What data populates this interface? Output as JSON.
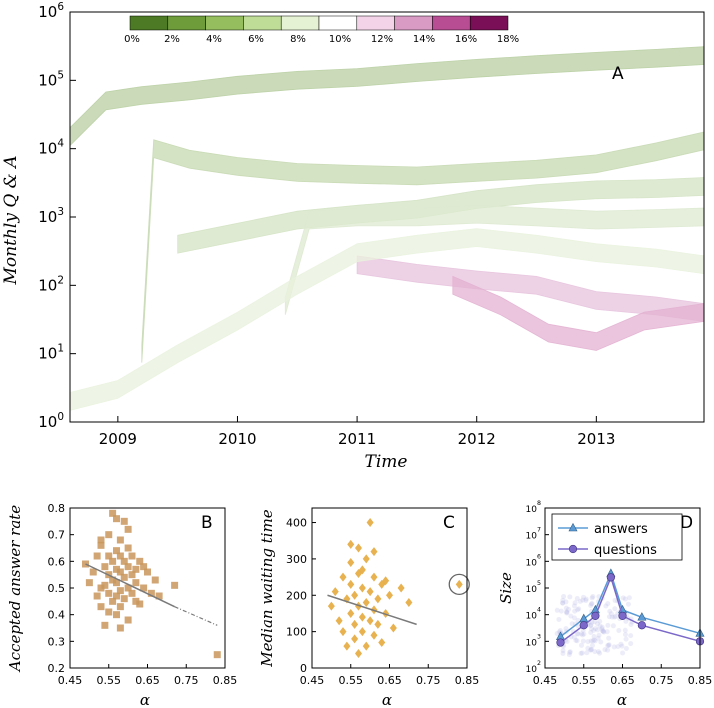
{
  "colorbar": {
    "labels": [
      "0%",
      "2%",
      "4%",
      "6%",
      "8%",
      "10%",
      "12%",
      "14%",
      "16%",
      "18%"
    ],
    "colors": [
      "#4d7a24",
      "#6e9c3a",
      "#95bf5f",
      "#c0dd98",
      "#e5f2d3",
      "#ffffff",
      "#f3d3e8",
      "#d99ac4",
      "#b94d94",
      "#7a0f57"
    ]
  },
  "chart_data": [
    {
      "panel": "A",
      "type": "area",
      "ylabel": "Monthly Q & A",
      "xlabel": "Time",
      "x_ticks": [
        "2009",
        "2010",
        "2011",
        "2012",
        "2013"
      ],
      "y_ticks": [
        "10^0",
        "10^1",
        "10^2",
        "10^3",
        "10^4",
        "10^5",
        "10^6"
      ],
      "yscale": "log",
      "xlim": [
        2008.6,
        2013.9
      ],
      "ylim": [
        1,
        1000000
      ],
      "series": [
        {
          "color": "#b9cfa3",
          "x": [
            2008.6,
            2008.9,
            2009.2,
            2009.6,
            2010.0,
            2010.5,
            2011.0,
            2011.5,
            2012.0,
            2012.5,
            2013.0,
            2013.5,
            2013.9
          ],
          "y": [
            15000,
            50000,
            60000,
            70000,
            85000,
            100000,
            110000,
            130000,
            150000,
            170000,
            190000,
            210000,
            230000
          ]
        },
        {
          "color": "#c7d9b2",
          "x": [
            2009.2,
            2009.3,
            2009.6,
            2010.0,
            2010.5,
            2011.0,
            2011.5,
            2012.0,
            2012.5,
            2013.0,
            2013.5,
            2013.9
          ],
          "y": [
            10,
            10000,
            7000,
            5500,
            4500,
            4200,
            4000,
            4500,
            5000,
            6000,
            9000,
            13000
          ]
        },
        {
          "color": "#d4e3c4",
          "x": [
            2009.5,
            2010.0,
            2010.5,
            2011.0,
            2011.5,
            2012.0,
            2012.5,
            2013.0,
            2013.5,
            2013.9
          ],
          "y": [
            400,
            600,
            900,
            1100,
            1300,
            1800,
            2200,
            2500,
            2600,
            2800
          ]
        },
        {
          "color": "#dde9d0",
          "x": [
            2010.4,
            2010.6,
            2011.0,
            2011.5,
            2012.0,
            2012.5,
            2013.0,
            2013.5,
            2013.9
          ],
          "y": [
            50,
            900,
            1000,
            1000,
            1100,
            1000,
            900,
            950,
            1000
          ]
        },
        {
          "color": "#e7c3dd",
          "x": [
            2011.0,
            2011.5,
            2012.0,
            2012.5,
            2013.0,
            2013.5,
            2013.9
          ],
          "y": [
            200,
            150,
            120,
            100,
            60,
            50,
            40
          ]
        },
        {
          "color": "#e3b1d2",
          "x": [
            2011.8,
            2012.2,
            2012.6,
            2013.0,
            2013.4,
            2013.9
          ],
          "y": [
            100,
            50,
            20,
            15,
            30,
            40
          ]
        },
        {
          "color": "#e9f2de",
          "x": [
            2008.6,
            2009.0,
            2009.5,
            2010.0,
            2010.5,
            2011.0,
            2011.5,
            2012.0,
            2012.5,
            2013.0,
            2013.5,
            2013.9
          ],
          "y": [
            2,
            3,
            10,
            30,
            100,
            300,
            400,
            500,
            400,
            300,
            250,
            200
          ]
        }
      ]
    },
    {
      "panel": "B",
      "type": "scatter",
      "ylabel": "Accepted answer rate",
      "xlabel": "α",
      "x_ticks": [
        "0.45",
        "0.55",
        "0.65",
        "0.75",
        "0.85"
      ],
      "y_ticks": [
        "0.2",
        "0.3",
        "0.4",
        "0.5",
        "0.6",
        "0.7",
        "0.8"
      ],
      "xlim": [
        0.45,
        0.85
      ],
      "ylim": [
        0.2,
        0.8
      ],
      "marker": "square",
      "color": "#c9965c",
      "x": [
        0.49,
        0.5,
        0.51,
        0.52,
        0.52,
        0.53,
        0.53,
        0.53,
        0.54,
        0.54,
        0.54,
        0.55,
        0.55,
        0.55,
        0.55,
        0.56,
        0.56,
        0.56,
        0.56,
        0.57,
        0.57,
        0.57,
        0.57,
        0.57,
        0.58,
        0.58,
        0.58,
        0.58,
        0.58,
        0.59,
        0.59,
        0.59,
        0.59,
        0.6,
        0.6,
        0.6,
        0.6,
        0.61,
        0.61,
        0.61,
        0.62,
        0.62,
        0.62,
        0.63,
        0.63,
        0.64,
        0.64,
        0.65,
        0.66,
        0.67,
        0.68,
        0.72,
        0.83,
        0.57,
        0.58,
        0.6,
        0.55,
        0.53
      ],
      "y": [
        0.59,
        0.52,
        0.56,
        0.62,
        0.47,
        0.5,
        0.66,
        0.43,
        0.58,
        0.51,
        0.36,
        0.62,
        0.55,
        0.48,
        0.7,
        0.6,
        0.45,
        0.53,
        0.78,
        0.52,
        0.64,
        0.4,
        0.57,
        0.47,
        0.56,
        0.68,
        0.49,
        0.62,
        0.43,
        0.54,
        0.6,
        0.46,
        0.75,
        0.58,
        0.5,
        0.65,
        0.38,
        0.55,
        0.48,
        0.62,
        0.57,
        0.45,
        0.52,
        0.6,
        0.44,
        0.5,
        0.58,
        0.56,
        0.48,
        0.53,
        0.47,
        0.51,
        0.25,
        0.76,
        0.35,
        0.72,
        0.41,
        0.68
      ],
      "trend": {
        "x": [
          0.49,
          0.72
        ],
        "y": [
          0.59,
          0.43
        ]
      }
    },
    {
      "panel": "C",
      "type": "scatter",
      "ylabel": "Median waiting time",
      "xlabel": "α",
      "x_ticks": [
        "0.45",
        "0.55",
        "0.65",
        "0.75",
        "0.85"
      ],
      "y_ticks": [
        "0",
        "100",
        "200",
        "300",
        "400"
      ],
      "xlim": [
        0.45,
        0.85
      ],
      "ylim": [
        0,
        440
      ],
      "marker": "diamond",
      "color": "#e3a430",
      "x": [
        0.5,
        0.51,
        0.52,
        0.53,
        0.53,
        0.54,
        0.54,
        0.55,
        0.55,
        0.55,
        0.56,
        0.56,
        0.56,
        0.57,
        0.57,
        0.57,
        0.57,
        0.58,
        0.58,
        0.58,
        0.59,
        0.59,
        0.59,
        0.6,
        0.6,
        0.6,
        0.61,
        0.61,
        0.61,
        0.62,
        0.62,
        0.63,
        0.63,
        0.64,
        0.65,
        0.66,
        0.68,
        0.7,
        0.55,
        0.58,
        0.61,
        0.64,
        0.83
      ],
      "y": [
        170,
        210,
        130,
        250,
        100,
        190,
        60,
        230,
        150,
        290,
        120,
        200,
        80,
        260,
        170,
        40,
        330,
        140,
        220,
        100,
        180,
        300,
        60,
        210,
        130,
        400,
        160,
        250,
        90,
        190,
        120,
        230,
        70,
        150,
        200,
        110,
        220,
        180,
        340,
        270,
        320,
        240,
        230
      ],
      "highlight_point": {
        "x": 0.83,
        "y": 230
      },
      "trend": {
        "x": [
          0.49,
          0.72
        ],
        "y": [
          200,
          120
        ]
      }
    },
    {
      "panel": "D",
      "type": "line",
      "ylabel": "Size",
      "xlabel": "α",
      "yscale": "log",
      "x_ticks": [
        "0.45",
        "0.55",
        "0.65",
        "0.75",
        "0.85"
      ],
      "y_ticks": [
        "10^2",
        "10^3",
        "10^4",
        "10^5",
        "10^6",
        "10^7",
        "10^8"
      ],
      "xlim": [
        0.45,
        0.85
      ],
      "ylim": [
        100,
        100000000
      ],
      "legend": "top-left",
      "series": [
        {
          "name": "answers",
          "marker": "triangle",
          "color": "#5b9bd5",
          "x": [
            0.49,
            0.55,
            0.58,
            0.62,
            0.65,
            0.7,
            0.85
          ],
          "y": [
            1500,
            7000,
            15000,
            350000,
            15000,
            8000,
            2000
          ]
        },
        {
          "name": "questions",
          "marker": "circle",
          "color": "#7b68c8",
          "x": [
            0.49,
            0.55,
            0.58,
            0.62,
            0.65,
            0.7,
            0.85
          ],
          "y": [
            900,
            4000,
            9000,
            250000,
            9000,
            4000,
            1000
          ]
        }
      ]
    }
  ]
}
